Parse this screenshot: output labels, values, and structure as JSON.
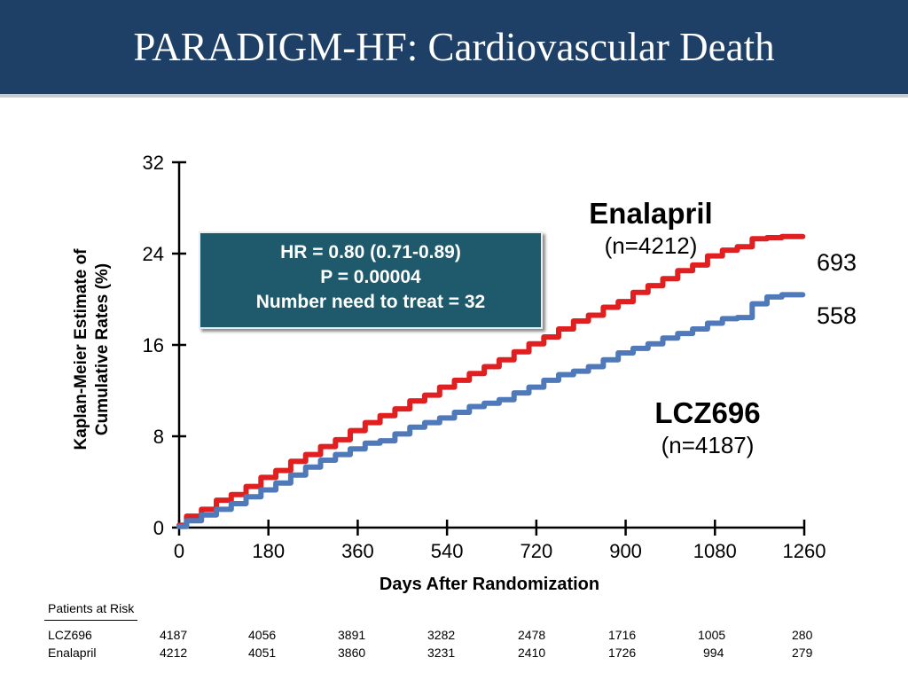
{
  "title": "PARADIGM-HF: Cardiovascular Death",
  "colors": {
    "header_bg": "#1e3f66",
    "enalapril": "#e02020",
    "lcz696": "#4f79b8",
    "stats_box": "#1e5a6b"
  },
  "stats": {
    "hr": "HR = 0.80 (0.71-0.89)",
    "p": "P = 0.00004",
    "nnt": "Number need to treat = 32"
  },
  "arms": {
    "enalapril": {
      "name": "Enalapril",
      "n": "(n=4212)",
      "events": "693"
    },
    "lcz696": {
      "name": "LCZ696",
      "n": "(n=4187)",
      "events": "558"
    }
  },
  "risk_table": {
    "title": "Patients at Risk",
    "rows": [
      {
        "label": "LCZ696",
        "values": [
          "4187",
          "4056",
          "3891",
          "3282",
          "2478",
          "1716",
          "1005",
          "280"
        ]
      },
      {
        "label": "Enalapril",
        "values": [
          "4212",
          "4051",
          "3860",
          "3231",
          "2410",
          "1726",
          "994",
          "279"
        ]
      }
    ]
  },
  "chart_data": {
    "type": "line",
    "title": "",
    "xlabel": "Days After Randomization",
    "ylabel": "Kaplan-Meier Estimate of Cumulative Rates (%)",
    "xlim": [
      0,
      1260
    ],
    "ylim": [
      0,
      32
    ],
    "xticks": [
      0,
      180,
      360,
      540,
      720,
      900,
      1080,
      1260
    ],
    "yticks": [
      0,
      8,
      16,
      24,
      32
    ],
    "grid": false,
    "series": [
      {
        "name": "Enalapril",
        "color": "#e02020",
        "x": [
          0,
          30,
          60,
          90,
          120,
          150,
          180,
          210,
          240,
          270,
          300,
          330,
          360,
          390,
          420,
          450,
          480,
          510,
          540,
          570,
          600,
          630,
          660,
          690,
          720,
          750,
          780,
          810,
          840,
          870,
          900,
          930,
          960,
          990,
          1020,
          1050,
          1080,
          1110,
          1140,
          1170,
          1200,
          1230
        ],
        "y": [
          0.2,
          1.0,
          1.6,
          2.4,
          2.9,
          3.6,
          4.4,
          5.0,
          5.8,
          6.4,
          7.1,
          7.7,
          8.5,
          9.2,
          9.8,
          10.4,
          11.1,
          11.6,
          12.3,
          12.9,
          13.5,
          14.1,
          14.7,
          15.4,
          16.1,
          16.7,
          17.4,
          18.1,
          18.6,
          19.3,
          19.8,
          20.6,
          21.2,
          21.8,
          22.5,
          23.0,
          23.8,
          24.3,
          24.6,
          25.3,
          25.4,
          25.5
        ]
      },
      {
        "name": "LCZ696",
        "color": "#4f79b8",
        "x": [
          0,
          30,
          60,
          90,
          120,
          150,
          180,
          210,
          240,
          270,
          300,
          330,
          360,
          390,
          420,
          450,
          480,
          510,
          540,
          570,
          600,
          630,
          660,
          690,
          720,
          750,
          780,
          810,
          840,
          870,
          900,
          930,
          960,
          990,
          1020,
          1050,
          1080,
          1110,
          1140,
          1170,
          1200,
          1230
        ],
        "y": [
          0.1,
          0.6,
          1.1,
          1.6,
          2.1,
          2.7,
          3.3,
          3.9,
          4.6,
          5.3,
          5.9,
          6.4,
          6.9,
          7.4,
          7.6,
          8.2,
          8.8,
          9.2,
          9.6,
          10.1,
          10.6,
          10.9,
          11.2,
          11.8,
          12.3,
          12.9,
          13.4,
          13.7,
          14.1,
          14.7,
          15.3,
          15.7,
          16.1,
          16.6,
          17.0,
          17.4,
          17.9,
          18.3,
          18.4,
          19.6,
          20.2,
          20.4
        ]
      }
    ]
  }
}
